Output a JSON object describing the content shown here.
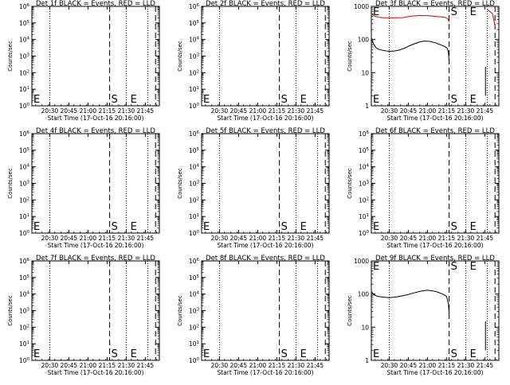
{
  "x_axis": {
    "label": "Start Time (17-Oct-16 20:16:00)",
    "range_min": [
      0,
      100
    ],
    "tick_min": [
      14,
      29,
      44,
      59,
      74,
      89
    ],
    "tick_labels": [
      "20:30",
      "20:45",
      "21:00",
      "21:15",
      "21:30",
      "21:45"
    ]
  },
  "markers": {
    "dotted_min": [
      14,
      74,
      91
    ],
    "dashed_min": [
      61,
      97
    ],
    "text": [
      {
        "label": "E",
        "min": 0
      },
      {
        "label": "S",
        "min": 61
      },
      {
        "label": "E",
        "min": 76
      }
    ]
  },
  "chart_data": [
    {
      "type": "line",
      "detector": "1f",
      "title": "Det 1f BLACK = Events, RED = LLD",
      "ylabel": "Counts/sec",
      "yscale": "log",
      "ylim": [
        1,
        1000000
      ],
      "ytick_labels": [
        "10^0",
        "10^1",
        "10^2",
        "10^3",
        "10^4",
        "10^5",
        "10^6"
      ],
      "series": []
    },
    {
      "type": "line",
      "detector": "2f",
      "title": "Det 2f BLACK = Events, RED = LLD",
      "ylabel": "Counts/sec",
      "yscale": "log",
      "ylim": [
        1,
        1000000
      ],
      "ytick_labels": [
        "10^0",
        "10^1",
        "10^2",
        "10^3",
        "10^4",
        "10^5",
        "10^6"
      ],
      "series": []
    },
    {
      "type": "line",
      "detector": "3f",
      "title": "Det 3f BLACK = Events, RED = LLD",
      "ylabel": "Counts/sec",
      "yscale": "log",
      "ylim": [
        1,
        1000
      ],
      "ytick_labels": [
        "1",
        "10",
        "100",
        "1000"
      ],
      "series": [
        {
          "color": "#000000",
          "x": [
            0,
            2,
            4,
            6,
            9,
            12,
            15,
            18,
            22,
            26,
            30,
            34,
            38,
            42,
            46,
            50,
            54,
            58,
            59.5,
            60.5,
            61
          ],
          "y": [
            110,
            70,
            55,
            50,
            47,
            45,
            44,
            45,
            48,
            55,
            65,
            75,
            85,
            90,
            88,
            80,
            70,
            60,
            55,
            40,
            22
          ]
        },
        {
          "color": "#dd0000",
          "x": [
            0,
            3,
            6,
            10,
            15,
            20,
            25,
            30,
            35,
            40,
            45,
            50,
            55,
            58,
            60,
            61
          ],
          "y": [
            600,
            500,
            470,
            455,
            450,
            455,
            460,
            500,
            520,
            530,
            520,
            500,
            480,
            470,
            420,
            340
          ]
        },
        {
          "color": "#dd0000",
          "x": [
            91,
            93,
            95,
            96,
            97
          ],
          "y": [
            800,
            700,
            600,
            400,
            250
          ]
        },
        {
          "color": "#000000",
          "x": [
            89.5,
            89.5,
            89.5
          ],
          "y": [
            2,
            15,
            5
          ]
        }
      ]
    },
    {
      "type": "line",
      "detector": "4f",
      "title": "Det 4f BLACK = Events, RED = LLD",
      "ylabel": "Counts/sec",
      "yscale": "log",
      "ylim": [
        1,
        1000000
      ],
      "ytick_labels": [
        "10^0",
        "10^1",
        "10^2",
        "10^3",
        "10^4",
        "10^5",
        "10^6"
      ],
      "series": []
    },
    {
      "type": "line",
      "detector": "5f",
      "title": "Det 5f BLACK = Events, RED = LLD",
      "ylabel": "Counts/sec",
      "yscale": "log",
      "ylim": [
        1,
        1000000
      ],
      "ytick_labels": [
        "10^0",
        "10^1",
        "10^2",
        "10^3",
        "10^4",
        "10^5",
        "10^6"
      ],
      "series": []
    },
    {
      "type": "line",
      "detector": "6f",
      "title": "Det 6f BLACK = Events, RED = LLD",
      "ylabel": "Counts/sec",
      "yscale": "log",
      "ylim": [
        1,
        1000000
      ],
      "ytick_labels": [
        "10^0",
        "10^1",
        "10^2",
        "10^3",
        "10^4",
        "10^5",
        "10^6"
      ],
      "series": []
    },
    {
      "type": "line",
      "detector": "7f",
      "title": "Det 7f BLACK = Events, RED = LLD",
      "ylabel": "Counts/sec",
      "yscale": "log",
      "ylim": [
        1,
        1000000
      ],
      "ytick_labels": [
        "10^0",
        "10^1",
        "10^2",
        "10^3",
        "10^4",
        "10^5",
        "10^6"
      ],
      "series": []
    },
    {
      "type": "line",
      "detector": "8f",
      "title": "Det 8f BLACK = Events, RED = LLD",
      "ylabel": "Counts/sec",
      "yscale": "log",
      "ylim": [
        1,
        1000000
      ],
      "ytick_labels": [
        "10^0",
        "10^1",
        "10^2",
        "10^3",
        "10^4",
        "10^5",
        "10^6"
      ],
      "series": []
    },
    {
      "type": "line",
      "detector": "9f",
      "title": "Det 9f BLACK = Events, RED = LLD",
      "ylabel": "Counts/sec",
      "yscale": "log",
      "ylim": [
        1,
        1000
      ],
      "ytick_labels": [
        "1",
        "10",
        "100",
        "1000"
      ],
      "series": [
        {
          "color": "#000000",
          "x": [
            0,
            2,
            5,
            8,
            11,
            14,
            17,
            20,
            24,
            28,
            32,
            36,
            40,
            44,
            48,
            52,
            56,
            59,
            60.5,
            61
          ],
          "y": [
            120,
            95,
            85,
            82,
            80,
            78,
            80,
            82,
            88,
            95,
            105,
            115,
            125,
            130,
            125,
            115,
            100,
            85,
            50,
            25
          ]
        },
        {
          "color": "#000000",
          "x": [
            89.5,
            89.5,
            89.5
          ],
          "y": [
            2,
            15,
            5
          ]
        }
      ]
    }
  ]
}
